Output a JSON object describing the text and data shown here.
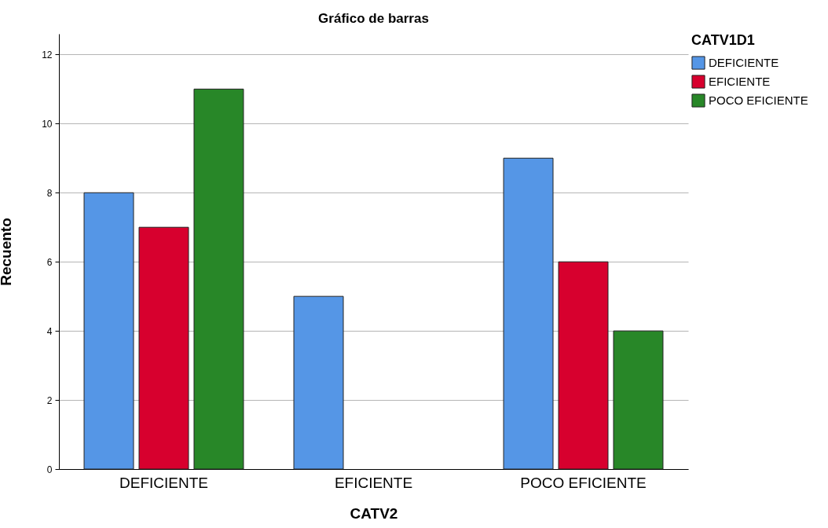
{
  "chart_data": {
    "type": "bar",
    "title": "Gráfico de barras",
    "xlabel": "CATV2",
    "ylabel": "Recuento",
    "legend_title": "CATV1D1",
    "categories": [
      "DEFICIENTE",
      "EFICIENTE",
      "POCO EFICIENTE"
    ],
    "series": [
      {
        "name": "DEFICIENTE",
        "color": "#5596e6",
        "values": [
          8,
          5,
          9
        ]
      },
      {
        "name": "EFICIENTE",
        "color": "#d7002e",
        "values": [
          7,
          null,
          6
        ]
      },
      {
        "name": "POCO EFICIENTE",
        "color": "#288728",
        "values": [
          11,
          null,
          4
        ]
      }
    ],
    "ylim": [
      0,
      12.6
    ],
    "yticks": [
      0,
      2,
      4,
      6,
      8,
      10,
      12
    ],
    "grid": "y",
    "legend": "top right"
  }
}
